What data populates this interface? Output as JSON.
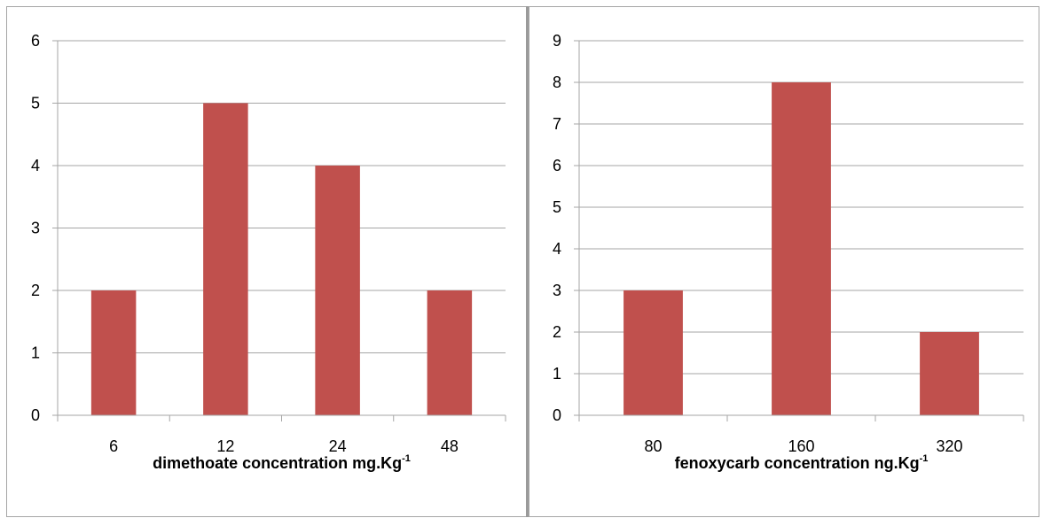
{
  "chart_data": [
    {
      "type": "bar",
      "categories": [
        "6",
        "12",
        "24",
        "48"
      ],
      "values": [
        2,
        5,
        4,
        2
      ],
      "xlabel": "dimethoate concentration mg.Kg",
      "xlabel_superscript": "-1",
      "ylabel": "",
      "ylim": [
        0,
        6
      ],
      "yticks": [
        "0",
        "1",
        "2",
        "3",
        "4",
        "5",
        "6"
      ],
      "grid": true,
      "legend": "none",
      "bar_color": "#c0504d"
    },
    {
      "type": "bar",
      "categories": [
        "80",
        "160",
        "320"
      ],
      "values": [
        3,
        8,
        2
      ],
      "xlabel": "fenoxycarb concentration ng.Kg",
      "xlabel_superscript": "-1",
      "ylabel": "",
      "ylim": [
        0,
        9
      ],
      "yticks": [
        "0",
        "1",
        "2",
        "3",
        "4",
        "5",
        "6",
        "7",
        "8",
        "9"
      ],
      "grid": true,
      "legend": "none",
      "bar_color": "#c0504d"
    }
  ]
}
